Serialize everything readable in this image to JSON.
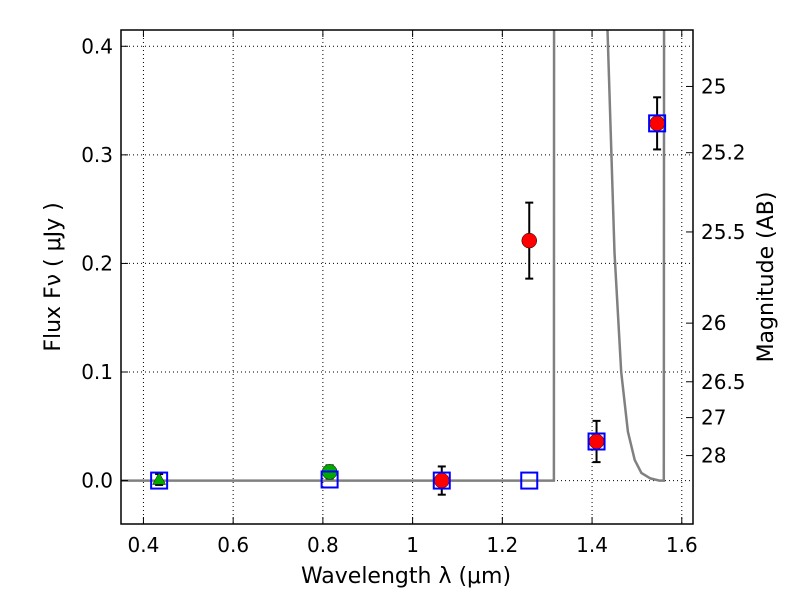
{
  "chart_data": {
    "type": "scatter",
    "title": "",
    "xlabel_text": "Wavelength  λ (μm)",
    "ylabel_text": "Flux  Fν  ( μJy )",
    "ylabel_right": "Magnitude (AB)",
    "xlim": [
      0.35,
      1.625
    ],
    "ylim": [
      -0.04,
      0.415
    ],
    "grid": true,
    "x_ticks": [
      0.4,
      0.6,
      0.8,
      1.0,
      1.2,
      1.4,
      1.6
    ],
    "x_tick_labels": [
      "0.4",
      "0.6",
      "0.8",
      "1",
      "1.2",
      "1.4",
      "1.6"
    ],
    "y_ticks": [
      0.0,
      0.1,
      0.2,
      0.3,
      0.4
    ],
    "y_tick_labels": [
      "0.0",
      "0.1",
      "0.2",
      "0.3",
      "0.4"
    ],
    "right_ticks": [
      {
        "label": "25",
        "flux": 0.363
      },
      {
        "label": "25.2",
        "flux": 0.302
      },
      {
        "label": "25.5",
        "flux": 0.229
      },
      {
        "label": "26",
        "flux": 0.145
      },
      {
        "label": "26.5",
        "flux": 0.091
      },
      {
        "label": "27",
        "flux": 0.058
      },
      {
        "label": "28",
        "flux": 0.023
      }
    ],
    "series": [
      {
        "marker": "circle",
        "color": "#ff0000",
        "points": [
          {
            "x": 1.065,
            "y": 0.0,
            "err": 0.013
          },
          {
            "x": 1.26,
            "y": 0.221,
            "err": 0.035
          },
          {
            "x": 1.41,
            "y": 0.036,
            "err": 0.019
          },
          {
            "x": 1.545,
            "y": 0.329,
            "err": 0.024
          }
        ]
      },
      {
        "marker": "circle",
        "color": "#00aa00",
        "points": [
          {
            "x": 0.815,
            "y": 0.008,
            "err": 0.006
          }
        ]
      },
      {
        "marker": "triangle",
        "color": "#00aa00",
        "points": [
          {
            "x": 0.435,
            "y": 0.001,
            "err": 0.005
          }
        ]
      },
      {
        "marker": "open-square",
        "color": "#0000ff",
        "points": [
          {
            "x": 0.435,
            "y": 0.0
          },
          {
            "x": 0.815,
            "y": 0.001
          },
          {
            "x": 1.065,
            "y": 0.0
          },
          {
            "x": 1.26,
            "y": 0.0
          },
          {
            "x": 1.41,
            "y": 0.036
          },
          {
            "x": 1.545,
            "y": 0.329
          }
        ]
      }
    ],
    "model_curve": {
      "color": "#808080",
      "points": [
        [
          0.35,
          0.0
        ],
        [
          1.28,
          0.0
        ],
        [
          1.3,
          0.0
        ],
        [
          1.315,
          0.0
        ],
        [
          1.3155,
          0.5
        ],
        [
          1.428,
          0.5
        ],
        [
          1.45,
          0.21
        ],
        [
          1.465,
          0.1
        ],
        [
          1.48,
          0.045
        ],
        [
          1.495,
          0.019
        ],
        [
          1.51,
          0.007
        ],
        [
          1.53,
          0.002
        ],
        [
          1.55,
          0.0
        ],
        [
          1.56,
          0.0
        ],
        [
          1.5605,
          0.5
        ]
      ]
    }
  }
}
